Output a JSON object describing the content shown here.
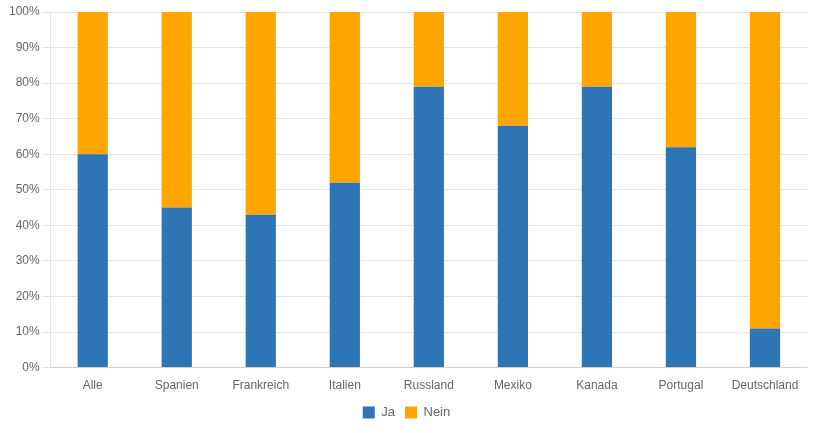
{
  "chart_data": {
    "type": "bar",
    "stacked": true,
    "categories": [
      "Alle",
      "Spanien",
      "Frankreich",
      "Italien",
      "Russland",
      "Mexiko",
      "Kanada",
      "Portugal",
      "Deutschland"
    ],
    "series": [
      {
        "name": "Ja",
        "color": "#2E75B6",
        "values": [
          60,
          45,
          43,
          52,
          79,
          68,
          79,
          62,
          11
        ]
      },
      {
        "name": "Nein",
        "color": "#FFA500",
        "values": [
          40,
          55,
          57,
          48,
          21,
          32,
          21,
          38,
          89
        ]
      }
    ],
    "ylim": [
      0,
      100
    ],
    "yticks": [
      {
        "value": 0,
        "label": "0%"
      },
      {
        "value": 10,
        "label": "10%"
      },
      {
        "value": 20,
        "label": "20%"
      },
      {
        "value": 30,
        "label": "30%"
      },
      {
        "value": 40,
        "label": "40%"
      },
      {
        "value": 50,
        "label": "50%"
      },
      {
        "value": 60,
        "label": "60%"
      },
      {
        "value": 70,
        "label": "70%"
      },
      {
        "value": 80,
        "label": "80%"
      },
      {
        "value": 90,
        "label": "90%"
      },
      {
        "value": 100,
        "label": "100%"
      }
    ],
    "grid": "y",
    "legend": "bottom"
  }
}
